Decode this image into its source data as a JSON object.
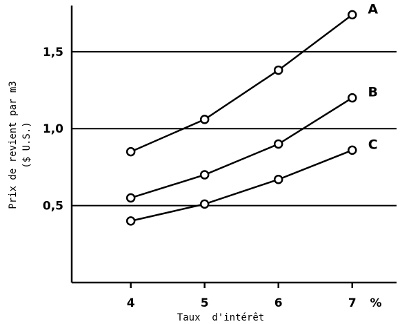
{
  "chart_data": {
    "type": "line",
    "xlabel": "Taux  d'intérêt",
    "ylabel": "Prix de revient par m3",
    "ylabel_line2": "($ U.S.)",
    "x_unit": "%",
    "xlim": [
      3.2,
      7.6
    ],
    "ylim": [
      0.0,
      1.8
    ],
    "x_ticks": [
      4,
      5,
      6,
      7
    ],
    "x_tick_labels": [
      "4",
      "5",
      "6",
      "7"
    ],
    "y_ticks": [
      0.5,
      1.0,
      1.5
    ],
    "y_tick_labels": [
      "0,5",
      "1,0",
      "1,5"
    ],
    "grid": "horizontal",
    "marker": "open-circle",
    "series": [
      {
        "name": "A",
        "x": [
          4,
          5,
          6,
          7
        ],
        "values": [
          0.85,
          1.06,
          1.38,
          1.74
        ]
      },
      {
        "name": "B",
        "x": [
          4,
          5,
          6,
          7
        ],
        "values": [
          0.55,
          0.7,
          0.9,
          1.2
        ]
      },
      {
        "name": "C",
        "x": [
          4,
          5,
          6,
          7
        ],
        "values": [
          0.4,
          0.51,
          0.67,
          0.86
        ]
      }
    ],
    "colors": {
      "line": "#000000",
      "marker_fill": "#ffffff"
    }
  }
}
